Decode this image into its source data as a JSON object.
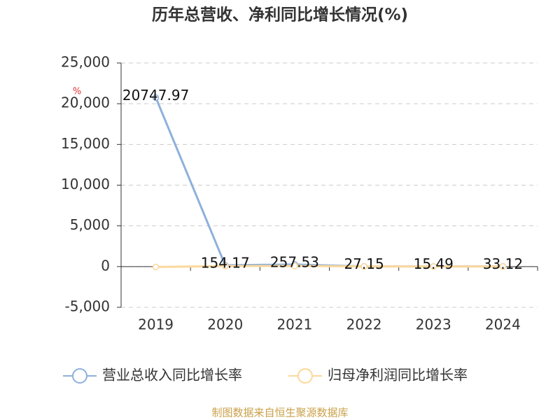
{
  "chart_data": {
    "type": "line",
    "title": "历年总营收、净利同比增长情况(%)",
    "unit": "%",
    "categories": [
      "2019",
      "2020",
      "2021",
      "2022",
      "2023",
      "2024"
    ],
    "series": [
      {
        "name": "营业总收入同比增长率",
        "color": "#8eb0db",
        "values": [
          20747.97,
          154.17,
          257.53,
          27.15,
          15.49,
          33.12
        ],
        "show_labels": true
      },
      {
        "name": "归母净利润同比增长率",
        "color": "#fbd89b",
        "values": [
          -50,
          60,
          80,
          20,
          10,
          15
        ],
        "show_labels": false
      }
    ],
    "ylim": [
      -5000,
      25000
    ],
    "yticks": [
      {
        "value": -5000,
        "label": "-5,000"
      },
      0,
      {
        "value": 5000,
        "label": "5,000"
      },
      {
        "value": 10000,
        "label": "10,000"
      },
      {
        "value": 15000,
        "label": "15,000"
      },
      {
        "value": 20000,
        "label": "20,000"
      },
      {
        "value": 25000,
        "label": "25,000"
      }
    ],
    "grid": true,
    "source": "制图数据来自恒生聚源数据库"
  }
}
